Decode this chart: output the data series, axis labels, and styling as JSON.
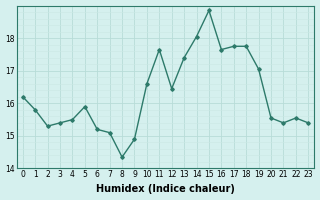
{
  "x": [
    0,
    1,
    2,
    3,
    4,
    5,
    6,
    7,
    8,
    9,
    10,
    11,
    12,
    13,
    14,
    15,
    16,
    17,
    18,
    19,
    20,
    21,
    22,
    23
  ],
  "y": [
    16.2,
    15.8,
    15.3,
    15.4,
    15.5,
    15.9,
    15.2,
    15.1,
    14.35,
    14.9,
    16.6,
    17.65,
    16.45,
    17.4,
    18.05,
    18.85,
    17.65,
    17.75,
    17.75,
    17.05,
    15.55,
    15.4,
    15.55,
    15.4
  ],
  "line_color": "#2d7a6a",
  "marker": "D",
  "marker_size": 1.8,
  "line_width": 1.0,
  "xlabel": "Humidex (Indice chaleur)",
  "ylim": [
    14,
    19
  ],
  "xlim": [
    -0.5,
    23.5
  ],
  "yticks": [
    14,
    15,
    16,
    17,
    18
  ],
  "xticks": [
    0,
    1,
    2,
    3,
    4,
    5,
    6,
    7,
    8,
    9,
    10,
    11,
    12,
    13,
    14,
    15,
    16,
    17,
    18,
    19,
    20,
    21,
    22,
    23
  ],
  "bg_color": "#d5f0ee",
  "grid_color_major": "#b8dcd8",
  "grid_color_minor": "#cce8e5",
  "tick_fontsize": 5.5,
  "xlabel_fontsize": 7.0
}
